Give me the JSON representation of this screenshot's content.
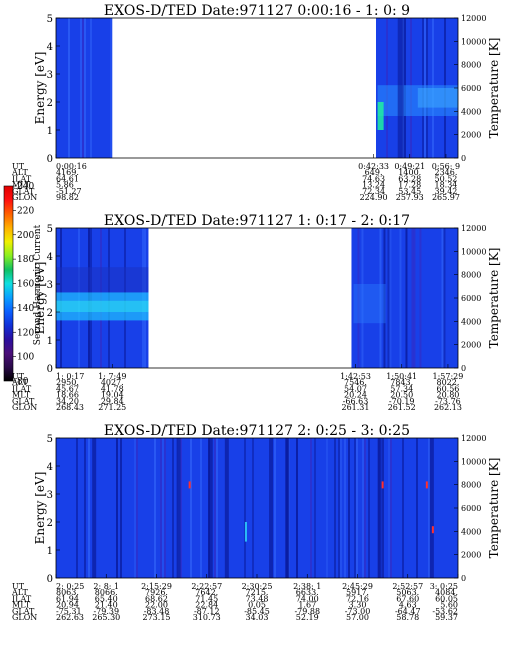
{
  "colorbar": {
    "label": "Second Harmonic Current",
    "ticks": [
      "80",
      "100",
      "120",
      "140",
      "160",
      "180",
      "200",
      "220",
      "240"
    ],
    "colors": [
      "#000000",
      "#2a0a4a",
      "#4b0f7a",
      "#2a0fa0",
      "#1030d8",
      "#0a60ff",
      "#0aa0ff",
      "#10e0e0",
      "#10c060",
      "#8af020",
      "#f0f000",
      "#ffb000",
      "#ff6000",
      "#ff1010",
      "#e00000"
    ]
  },
  "colors": {
    "background_blue": "#1840e8",
    "gap": "#ffffff"
  },
  "panels": [
    {
      "title": "EXOS-D/TED   Date:971127  0:00:16 - 1: 0: 9",
      "ylabel_left": "Energy [eV]",
      "ylabel_right": "Temperature [K]",
      "yticks_left": [
        "0",
        "1",
        "2",
        "3",
        "4",
        "5"
      ],
      "yticks_right": [
        "0",
        "2000",
        "4000",
        "6000",
        "8000",
        "10000",
        "12000"
      ],
      "blocks": [
        {
          "from": 0.0,
          "to": 0.14
        },
        {
          "from": 0.796,
          "to": 1.0
        }
      ],
      "orbit": {
        "labels": [
          "UT",
          "ALT",
          "ILAT",
          "MLT",
          "GLAT",
          "GLON"
        ],
        "columns": [
          {
            "pos": 0.0,
            "align": "start",
            "values": [
              "0:00:16",
              "4169.",
              "64.61",
              "5.86",
              "-51.27",
              "98.82"
            ]
          },
          {
            "pos": 0.79,
            "align": "middle",
            "values": [
              "0:42:33",
              "649.",
              "74.63",
              "13.24",
              "72.34",
              "224.90"
            ]
          },
          {
            "pos": 0.88,
            "align": "middle",
            "values": [
              "0:49:21",
              "1400.",
              "63.28",
              "17.28",
              "53.45",
              "257.93"
            ]
          },
          {
            "pos": 0.97,
            "align": "middle",
            "values": [
              "0:56: 9",
              "2346.",
              "50.52",
              "18.34",
              "39.42",
              "265.97"
            ]
          }
        ]
      }
    },
    {
      "title": "EXOS-D/TED   Date:971127  1: 0:17 - 2: 0:17",
      "ylabel_left": "Energy [eV]",
      "ylabel_right": "Temperature [K]",
      "yticks_left": [
        "0",
        "1",
        "2",
        "3",
        "4",
        "5"
      ],
      "yticks_right": [
        "0",
        "2000",
        "4000",
        "6000",
        "8000",
        "10000",
        "12000"
      ],
      "blocks": [
        {
          "from": 0.0,
          "to": 0.23
        },
        {
          "from": 0.735,
          "to": 1.0
        }
      ],
      "orbit": {
        "labels": [
          "UT",
          "ALT",
          "ILAT",
          "MLT",
          "GLAT",
          "GLON"
        ],
        "columns": [
          {
            "pos": 0.0,
            "align": "start",
            "values": [
              "1: 0:17",
              "2950.",
              "45.67",
              "18.66",
              "34.20",
              "268.43"
            ]
          },
          {
            "pos": 0.14,
            "align": "middle",
            "values": [
              "1: 7:49",
              "4027.",
              "41.78",
              "19.04",
              "29.84",
              "271.25"
            ]
          },
          {
            "pos": 0.745,
            "align": "middle",
            "values": [
              "1:42:53",
              "7546.",
              "54.07",
              "20.24",
              "-66.63",
              "261.31"
            ]
          },
          {
            "pos": 0.86,
            "align": "middle",
            "values": [
              "1:50:41",
              "7843.",
              "57.34",
              "20.50",
              "-70.19",
              "261.52"
            ]
          },
          {
            "pos": 0.975,
            "align": "middle",
            "values": [
              "1:57:29",
              "8022.",
              "60.56",
              "20.80",
              "-73.76",
              "262.13"
            ]
          }
        ]
      }
    },
    {
      "title": "EXOS-D/TED   Date:971127  2: 0:25 - 3: 0:25",
      "ylabel_left": "Energy [eV]",
      "ylabel_right": "Temperature [K]",
      "yticks_left": [
        "0",
        "1",
        "2",
        "3",
        "4",
        "5"
      ],
      "yticks_right": [
        "0",
        "2000",
        "4000",
        "6000",
        "8000",
        "10000",
        "12000"
      ],
      "blocks": [
        {
          "from": 0.0,
          "to": 1.0
        }
      ],
      "orbit": {
        "labels": [
          "UT",
          "ALT",
          "ILAT",
          "MLT",
          "GLAT",
          "GLON"
        ],
        "columns": [
          {
            "pos": 0.0,
            "align": "start",
            "values": [
              "2: 0:25",
              "8063.",
              "61.94",
              "20.94",
              "-75.31",
              "262.63"
            ]
          },
          {
            "pos": 0.125,
            "align": "middle",
            "values": [
              "2: 8: 1",
              "8066.",
              "65.40",
              "21.40",
              "-79.39",
              "265.30"
            ]
          },
          {
            "pos": 0.25,
            "align": "middle",
            "values": [
              "2:15:29",
              "7926.",
              "68.62",
              "22.00",
              "-83.48",
              "273.15"
            ]
          },
          {
            "pos": 0.375,
            "align": "middle",
            "values": [
              "2:22:57",
              "7642.",
              "71.45",
              "22.84",
              "-87.12",
              "310.73"
            ]
          },
          {
            "pos": 0.5,
            "align": "middle",
            "values": [
              "2:30:25",
              "7215.",
              "73.48",
              "0.05",
              "-85.45",
              "34.03"
            ]
          },
          {
            "pos": 0.625,
            "align": "middle",
            "values": [
              "2:38: 1",
              "6633.",
              "74.00",
              "1.67",
              "-79.88",
              "52.19"
            ]
          },
          {
            "pos": 0.75,
            "align": "middle",
            "values": [
              "2:45:29",
              "5917.",
              "72.16",
              "3.30",
              "-73.00",
              "57.00"
            ]
          },
          {
            "pos": 0.875,
            "align": "middle",
            "values": [
              "2:52:57",
              "5063.",
              "67.60",
              "4.63",
              "-64.47",
              "58.78"
            ]
          },
          {
            "pos": 1.0,
            "align": "end",
            "values": [
              "3: 0:25",
              "4084.",
              "60.05",
              "5.60",
              "-53.62",
              "59.37"
            ]
          }
        ]
      }
    }
  ],
  "chart_data": [
    {
      "type": "heatmap",
      "title": "EXOS-D/TED   Date:971127  0:00:16 - 1: 0: 9",
      "ylabel": "Energy [eV]",
      "ylim": [
        0,
        5
      ],
      "y2label": "Temperature [K]",
      "y2lim": [
        0,
        12000
      ],
      "data_intervals_ut": [
        [
          "0:00:16",
          "~0:08"
        ],
        [
          "0:42:33",
          "1: 0: 9"
        ]
      ],
      "colorbar": {
        "label": "Second Harmonic Current",
        "range": [
          80,
          240
        ]
      },
      "features": [
        "brighter band near 1.5–2.5 eV around 0:42–0:50",
        "band near 2–2.5 eV 0:50–1:00"
      ]
    },
    {
      "type": "heatmap",
      "title": "EXOS-D/TED   Date:971127  1: 0:17 - 2: 0:17",
      "ylabel": "Energy [eV]",
      "ylim": [
        0,
        5
      ],
      "y2label": "Temperature [K]",
      "y2lim": [
        0,
        12000
      ],
      "data_intervals_ut": [
        [
          "1: 0:17",
          "~1:14"
        ],
        [
          "~1:44",
          "2: 0:17"
        ]
      ],
      "colorbar": {
        "label": "Second Harmonic Current",
        "range": [
          80,
          240
        ]
      },
      "features": [
        "bright cyan band near 1.5–2.5 eV from 1:00 to 1:14"
      ]
    },
    {
      "type": "heatmap",
      "title": "EXOS-D/TED   Date:971127  2: 0:25 - 3: 0:25",
      "ylabel": "Energy [eV]",
      "ylim": [
        0,
        5
      ],
      "y2label": "Temperature [K]",
      "y2lim": [
        0,
        12000
      ],
      "data_intervals_ut": [
        [
          "2: 0:25",
          "3: 0:25"
        ]
      ],
      "colorbar": {
        "label": "Second Harmonic Current",
        "range": [
          80,
          240
        ]
      },
      "features": [
        "mostly uniform blue; scattered dark vertical stripes; small red spots near 2:15, 2:45, 2:58"
      ]
    }
  ]
}
